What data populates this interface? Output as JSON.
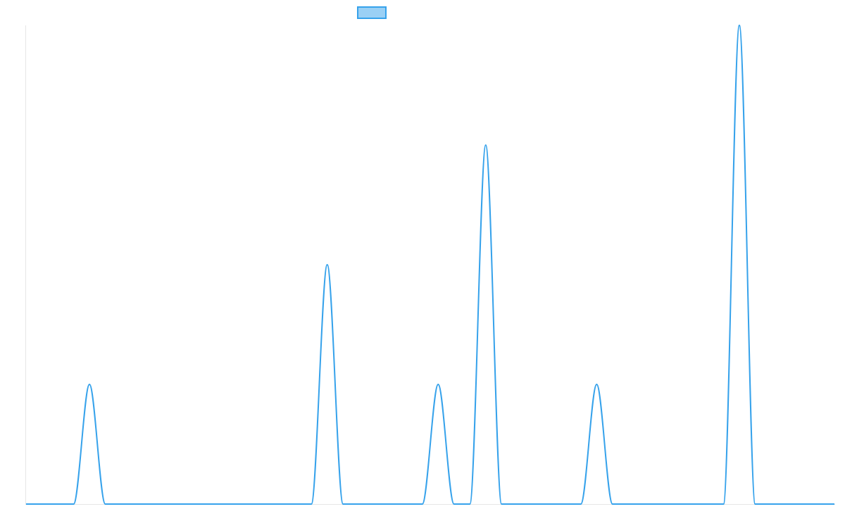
{
  "chart_data": {
    "type": "line",
    "title": "",
    "xlabel": "",
    "ylabel": "",
    "grid": false,
    "legend_position": "top-center",
    "x": [
      1,
      2,
      3,
      4,
      5,
      6,
      7,
      8,
      9,
      10,
      11,
      12,
      13,
      14,
      15,
      16,
      17,
      18,
      19,
      20,
      21,
      22,
      23,
      24,
      25,
      26,
      27,
      28,
      29,
      30,
      31,
      32,
      33,
      34,
      35,
      36,
      37,
      38,
      39,
      40,
      41,
      42,
      43,
      44,
      45,
      46,
      47,
      48,
      49,
      50,
      51,
      52
    ],
    "xlim": [
      0,
      51
    ],
    "ylim": [
      0,
      4
    ],
    "series": [
      {
        "name": "",
        "values": [
          0,
          0,
          0,
          0,
          1,
          0,
          0,
          0,
          0,
          0,
          0,
          0,
          0,
          0,
          0,
          0,
          0,
          0,
          0,
          2,
          0,
          0,
          0,
          0,
          0,
          0,
          1,
          0,
          0,
          3,
          0,
          0,
          0,
          0,
          0,
          0,
          1,
          0,
          0,
          0,
          0,
          0,
          0,
          0,
          0,
          4,
          0,
          0,
          0,
          0,
          0,
          0
        ],
        "line_color": "#36A2EB",
        "fill_color": "#9AD0F5"
      }
    ]
  }
}
